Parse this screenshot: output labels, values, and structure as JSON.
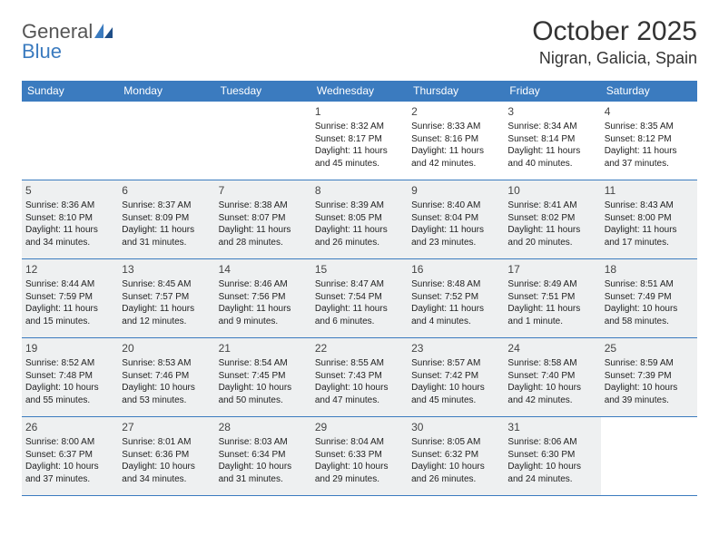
{
  "logo": {
    "text1": "General",
    "text2": "Blue"
  },
  "title": "October 2025",
  "location": "Nigran, Galicia, Spain",
  "colors": {
    "header_bg": "#3b7bbf",
    "header_text": "#ffffff",
    "shaded_bg": "#eef0f1",
    "rule": "#3b7bbf",
    "text": "#222222"
  },
  "day_labels": [
    "Sunday",
    "Monday",
    "Tuesday",
    "Wednesday",
    "Thursday",
    "Friday",
    "Saturday"
  ],
  "weeks": [
    [
      {
        "n": "",
        "sr": "",
        "ss": "",
        "dl": "",
        "shaded": false
      },
      {
        "n": "",
        "sr": "",
        "ss": "",
        "dl": "",
        "shaded": false
      },
      {
        "n": "",
        "sr": "",
        "ss": "",
        "dl": "",
        "shaded": false
      },
      {
        "n": "1",
        "sr": "Sunrise: 8:32 AM",
        "ss": "Sunset: 8:17 PM",
        "dl": "Daylight: 11 hours and 45 minutes.",
        "shaded": false
      },
      {
        "n": "2",
        "sr": "Sunrise: 8:33 AM",
        "ss": "Sunset: 8:16 PM",
        "dl": "Daylight: 11 hours and 42 minutes.",
        "shaded": false
      },
      {
        "n": "3",
        "sr": "Sunrise: 8:34 AM",
        "ss": "Sunset: 8:14 PM",
        "dl": "Daylight: 11 hours and 40 minutes.",
        "shaded": false
      },
      {
        "n": "4",
        "sr": "Sunrise: 8:35 AM",
        "ss": "Sunset: 8:12 PM",
        "dl": "Daylight: 11 hours and 37 minutes.",
        "shaded": false
      }
    ],
    [
      {
        "n": "5",
        "sr": "Sunrise: 8:36 AM",
        "ss": "Sunset: 8:10 PM",
        "dl": "Daylight: 11 hours and 34 minutes.",
        "shaded": true
      },
      {
        "n": "6",
        "sr": "Sunrise: 8:37 AM",
        "ss": "Sunset: 8:09 PM",
        "dl": "Daylight: 11 hours and 31 minutes.",
        "shaded": true
      },
      {
        "n": "7",
        "sr": "Sunrise: 8:38 AM",
        "ss": "Sunset: 8:07 PM",
        "dl": "Daylight: 11 hours and 28 minutes.",
        "shaded": true
      },
      {
        "n": "8",
        "sr": "Sunrise: 8:39 AM",
        "ss": "Sunset: 8:05 PM",
        "dl": "Daylight: 11 hours and 26 minutes.",
        "shaded": true
      },
      {
        "n": "9",
        "sr": "Sunrise: 8:40 AM",
        "ss": "Sunset: 8:04 PM",
        "dl": "Daylight: 11 hours and 23 minutes.",
        "shaded": true
      },
      {
        "n": "10",
        "sr": "Sunrise: 8:41 AM",
        "ss": "Sunset: 8:02 PM",
        "dl": "Daylight: 11 hours and 20 minutes.",
        "shaded": true
      },
      {
        "n": "11",
        "sr": "Sunrise: 8:43 AM",
        "ss": "Sunset: 8:00 PM",
        "dl": "Daylight: 11 hours and 17 minutes.",
        "shaded": true
      }
    ],
    [
      {
        "n": "12",
        "sr": "Sunrise: 8:44 AM",
        "ss": "Sunset: 7:59 PM",
        "dl": "Daylight: 11 hours and 15 minutes.",
        "shaded": true
      },
      {
        "n": "13",
        "sr": "Sunrise: 8:45 AM",
        "ss": "Sunset: 7:57 PM",
        "dl": "Daylight: 11 hours and 12 minutes.",
        "shaded": true
      },
      {
        "n": "14",
        "sr": "Sunrise: 8:46 AM",
        "ss": "Sunset: 7:56 PM",
        "dl": "Daylight: 11 hours and 9 minutes.",
        "shaded": true
      },
      {
        "n": "15",
        "sr": "Sunrise: 8:47 AM",
        "ss": "Sunset: 7:54 PM",
        "dl": "Daylight: 11 hours and 6 minutes.",
        "shaded": true
      },
      {
        "n": "16",
        "sr": "Sunrise: 8:48 AM",
        "ss": "Sunset: 7:52 PM",
        "dl": "Daylight: 11 hours and 4 minutes.",
        "shaded": true
      },
      {
        "n": "17",
        "sr": "Sunrise: 8:49 AM",
        "ss": "Sunset: 7:51 PM",
        "dl": "Daylight: 11 hours and 1 minute.",
        "shaded": true
      },
      {
        "n": "18",
        "sr": "Sunrise: 8:51 AM",
        "ss": "Sunset: 7:49 PM",
        "dl": "Daylight: 10 hours and 58 minutes.",
        "shaded": true
      }
    ],
    [
      {
        "n": "19",
        "sr": "Sunrise: 8:52 AM",
        "ss": "Sunset: 7:48 PM",
        "dl": "Daylight: 10 hours and 55 minutes.",
        "shaded": true
      },
      {
        "n": "20",
        "sr": "Sunrise: 8:53 AM",
        "ss": "Sunset: 7:46 PM",
        "dl": "Daylight: 10 hours and 53 minutes.",
        "shaded": true
      },
      {
        "n": "21",
        "sr": "Sunrise: 8:54 AM",
        "ss": "Sunset: 7:45 PM",
        "dl": "Daylight: 10 hours and 50 minutes.",
        "shaded": true
      },
      {
        "n": "22",
        "sr": "Sunrise: 8:55 AM",
        "ss": "Sunset: 7:43 PM",
        "dl": "Daylight: 10 hours and 47 minutes.",
        "shaded": true
      },
      {
        "n": "23",
        "sr": "Sunrise: 8:57 AM",
        "ss": "Sunset: 7:42 PM",
        "dl": "Daylight: 10 hours and 45 minutes.",
        "shaded": true
      },
      {
        "n": "24",
        "sr": "Sunrise: 8:58 AM",
        "ss": "Sunset: 7:40 PM",
        "dl": "Daylight: 10 hours and 42 minutes.",
        "shaded": true
      },
      {
        "n": "25",
        "sr": "Sunrise: 8:59 AM",
        "ss": "Sunset: 7:39 PM",
        "dl": "Daylight: 10 hours and 39 minutes.",
        "shaded": true
      }
    ],
    [
      {
        "n": "26",
        "sr": "Sunrise: 8:00 AM",
        "ss": "Sunset: 6:37 PM",
        "dl": "Daylight: 10 hours and 37 minutes.",
        "shaded": true
      },
      {
        "n": "27",
        "sr": "Sunrise: 8:01 AM",
        "ss": "Sunset: 6:36 PM",
        "dl": "Daylight: 10 hours and 34 minutes.",
        "shaded": true
      },
      {
        "n": "28",
        "sr": "Sunrise: 8:03 AM",
        "ss": "Sunset: 6:34 PM",
        "dl": "Daylight: 10 hours and 31 minutes.",
        "shaded": true
      },
      {
        "n": "29",
        "sr": "Sunrise: 8:04 AM",
        "ss": "Sunset: 6:33 PM",
        "dl": "Daylight: 10 hours and 29 minutes.",
        "shaded": true
      },
      {
        "n": "30",
        "sr": "Sunrise: 8:05 AM",
        "ss": "Sunset: 6:32 PM",
        "dl": "Daylight: 10 hours and 26 minutes.",
        "shaded": true
      },
      {
        "n": "31",
        "sr": "Sunrise: 8:06 AM",
        "ss": "Sunset: 6:30 PM",
        "dl": "Daylight: 10 hours and 24 minutes.",
        "shaded": true
      },
      {
        "n": "",
        "sr": "",
        "ss": "",
        "dl": "",
        "shaded": false
      }
    ]
  ]
}
